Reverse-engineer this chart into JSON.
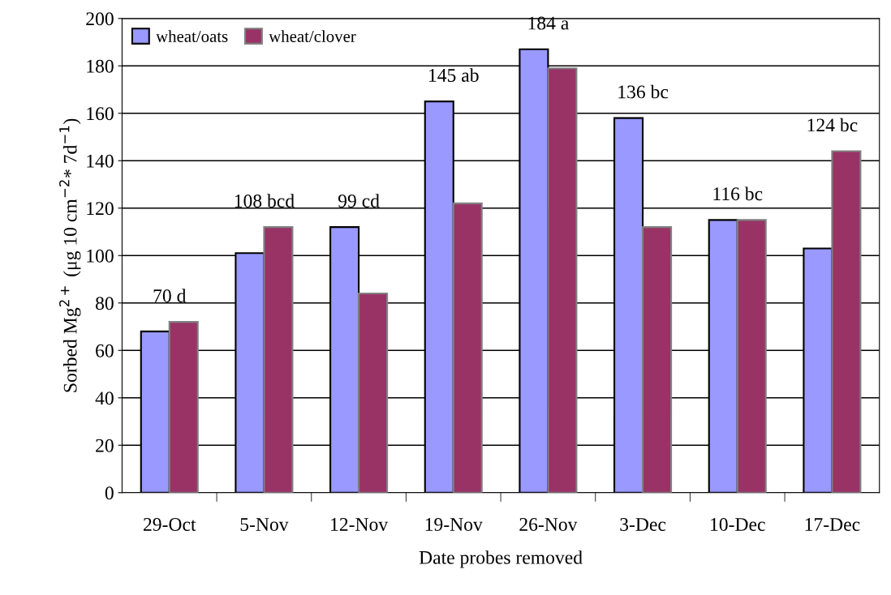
{
  "chart_data": {
    "type": "bar",
    "categories": [
      "29-Oct",
      "5-Nov",
      "12-Nov",
      "19-Nov",
      "26-Nov",
      "3-Dec",
      "10-Dec",
      "17-Dec"
    ],
    "series": [
      {
        "name": "wheat/oats",
        "color": "#9999ff",
        "values": [
          68,
          101,
          112,
          165,
          187,
          158,
          115,
          103
        ]
      },
      {
        "name": "wheat/clover",
        "color": "#993366",
        "values": [
          72,
          112,
          84,
          122,
          179,
          112,
          115,
          144
        ]
      }
    ],
    "xlabel": "Date probes removed",
    "ylabel": "Sorbed Mg$^{2+}$ (μg 10 cm$^{−2}$* 7d$^{−1}$)",
    "ylim": [
      0,
      200
    ],
    "yticks": [
      0,
      20,
      40,
      60,
      80,
      100,
      120,
      140,
      160,
      180,
      200
    ],
    "grid": "y",
    "legend": "top left",
    "annotations": [
      "70 d",
      "108 bcd",
      "99 cd",
      "145 ab",
      "184 a",
      "136 bc",
      "116 bc",
      "124 bc"
    ]
  }
}
